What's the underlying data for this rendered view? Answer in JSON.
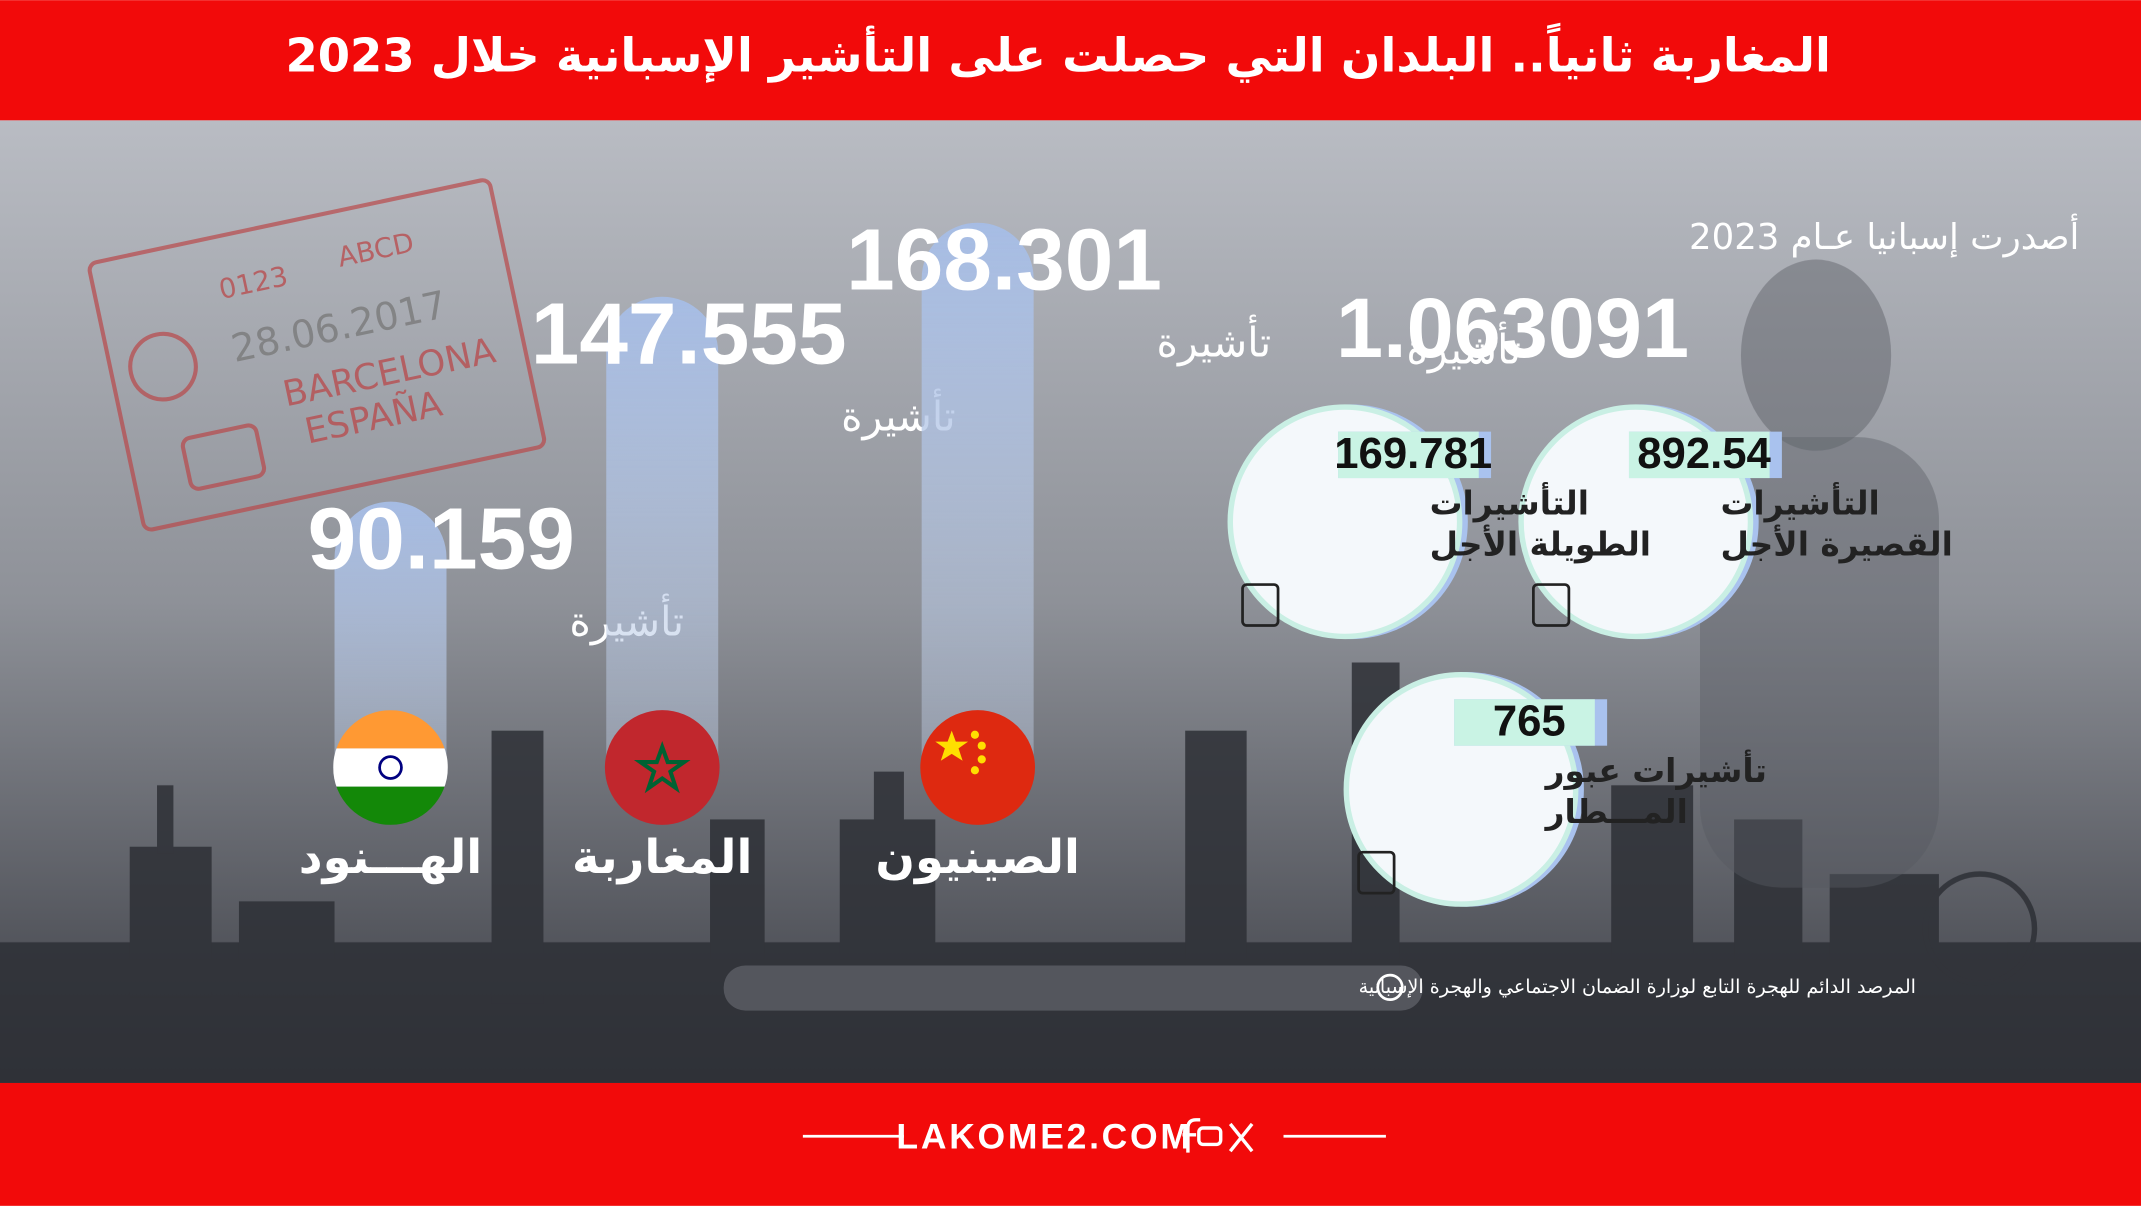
{
  "header": {
    "title": "المغاربة ثانياً.. البلدان التي حصلت على التأشير الإسبانية خلال 2023"
  },
  "stamp": {
    "code": "0123",
    "letters": "ABCD",
    "date": "28.06.2017",
    "city": "BARCELONA",
    "country": "ESPAÑA"
  },
  "bars": [
    {
      "country": "الهـــنود",
      "value": 90159,
      "label": "90.159",
      "unit": "تأشيرة"
    },
    {
      "country": "المغاربة",
      "value": 147555,
      "label": "147.555",
      "unit": "تأشيرة"
    },
    {
      "country": "الصينيون",
      "value": 168301,
      "label": "168.301",
      "unit": "تأشيرة"
    }
  ],
  "summary": {
    "intro": "أصدرت إسبانيا عـام 2023",
    "total": "1.063091",
    "unit": "تأشيرة"
  },
  "circles": [
    {
      "value": "892.54",
      "label": [
        "التأشيرات",
        "القصيرة الأجل"
      ]
    },
    {
      "value": "169.781",
      "label": [
        "التأشيرات",
        "الطويلة الأجل"
      ]
    },
    {
      "value": "765",
      "label": [
        "تأشيرات عبور",
        "المـــطار"
      ]
    }
  ],
  "source": "المرصد الدائم للهجرة التابع لوزارة الضمان الاجتماعي والهجرة الإسبانية",
  "footer": {
    "site": "LAKOME2.COM"
  }
}
